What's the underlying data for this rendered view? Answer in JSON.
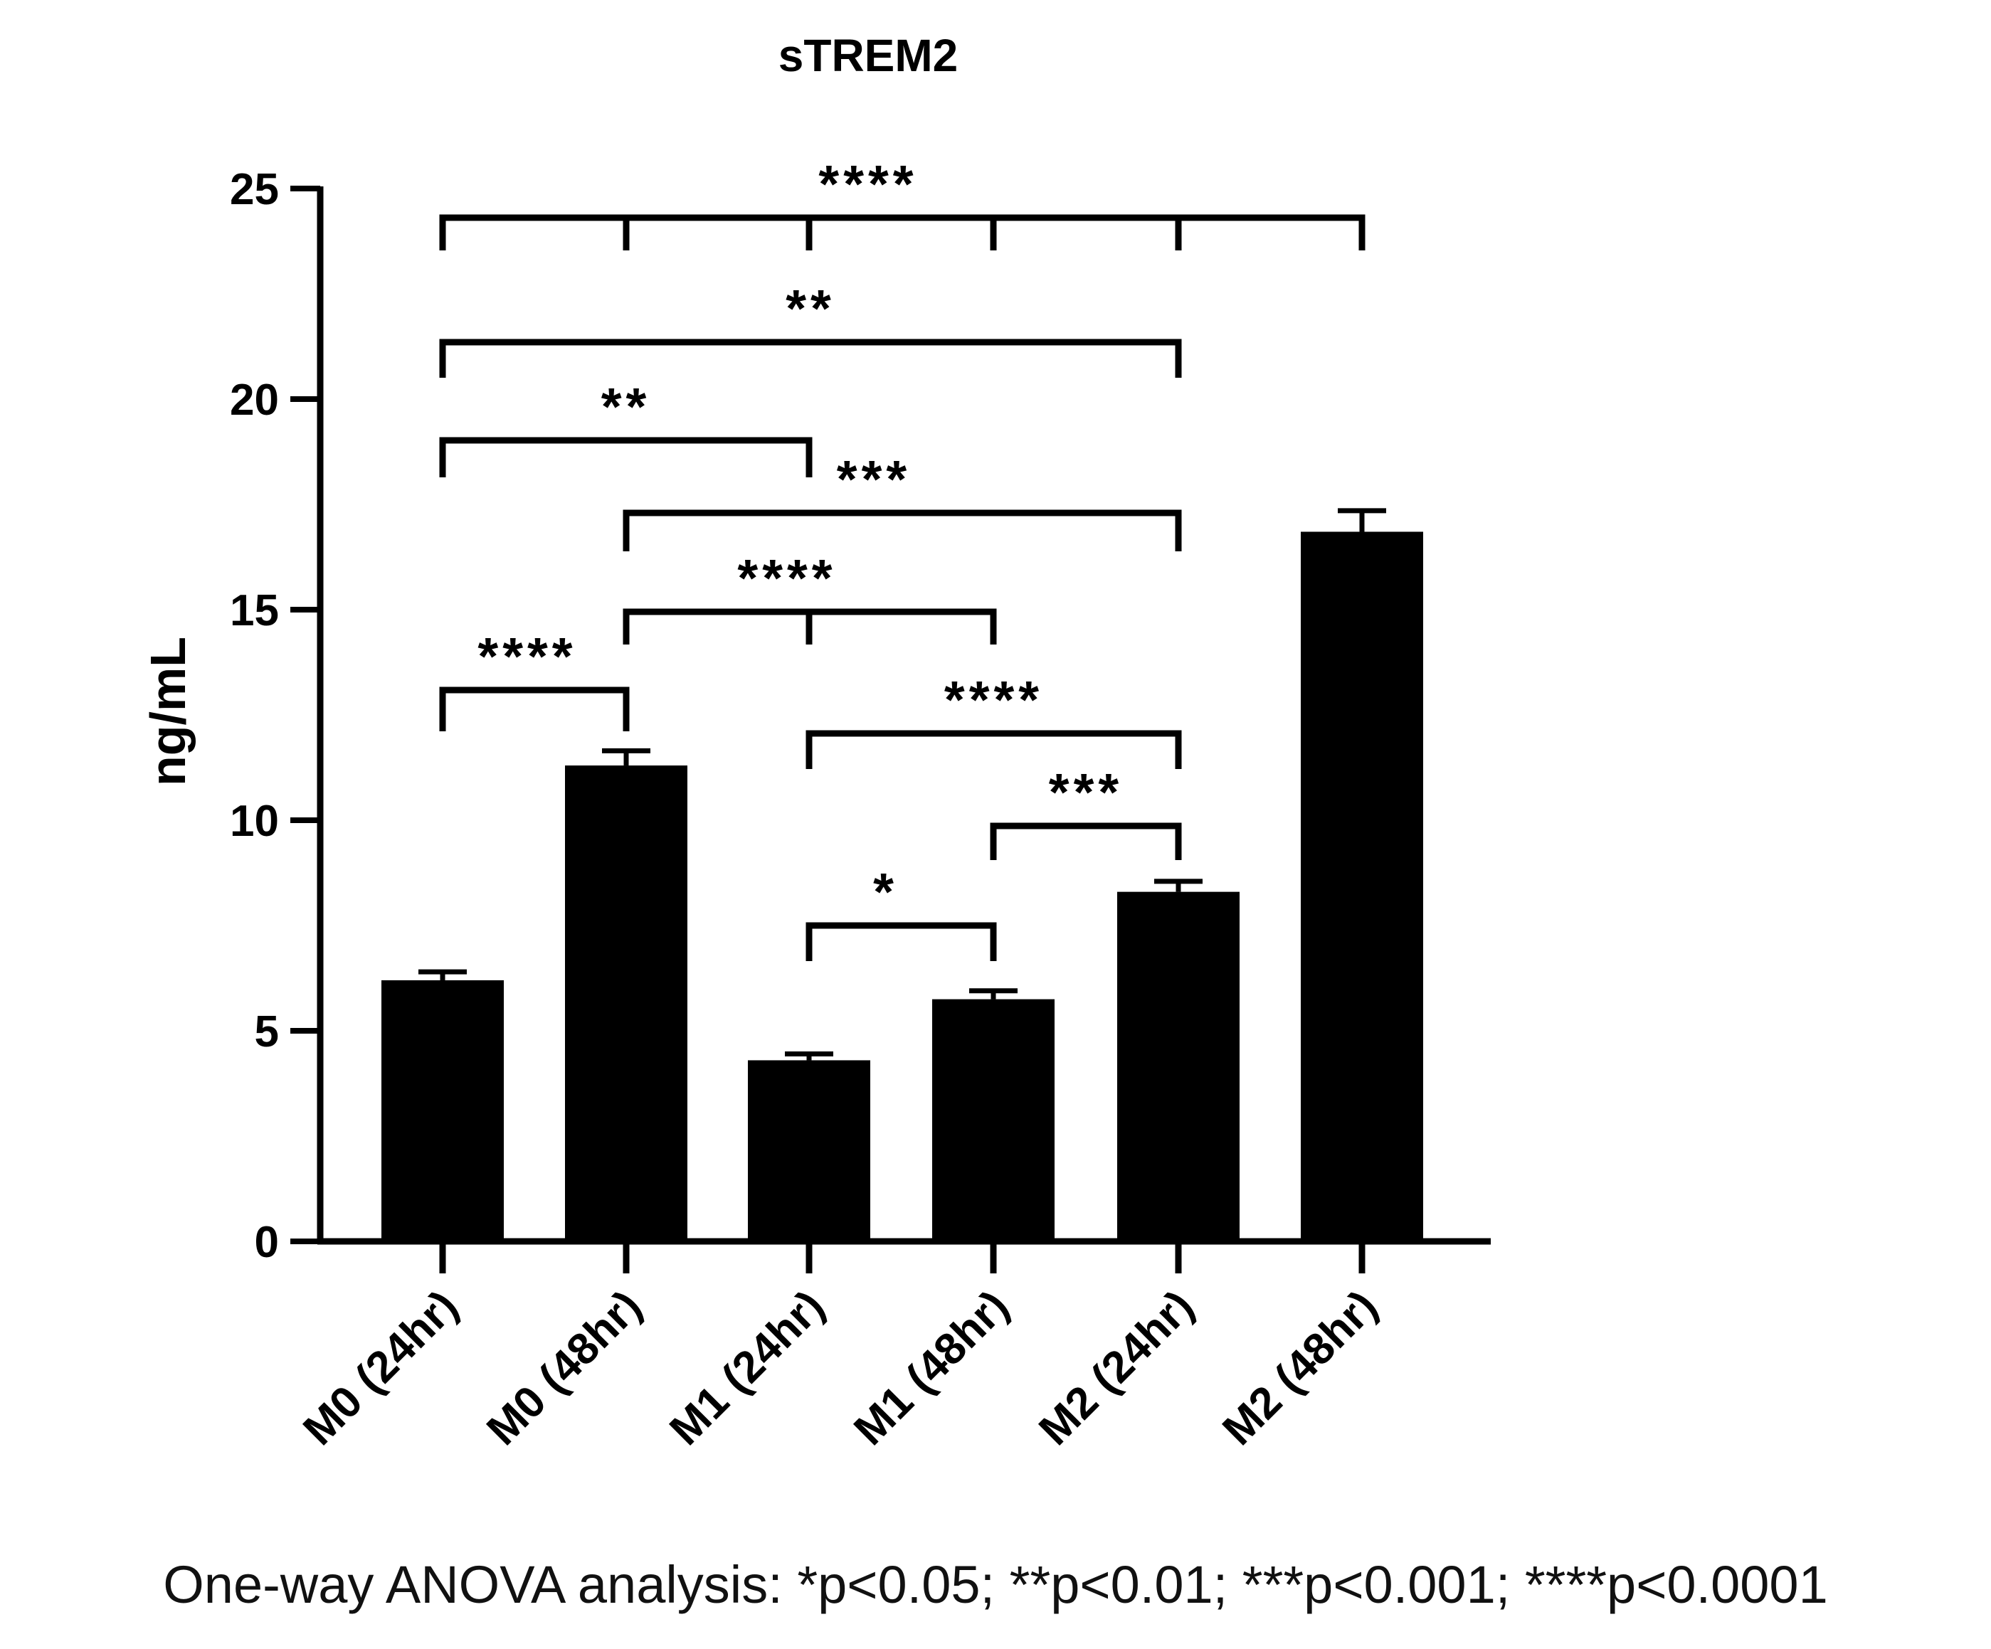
{
  "chart_data": {
    "type": "bar",
    "title": "sTREM2",
    "xlabel": "",
    "ylabel": "ng/mL",
    "ylim": [
      0,
      25
    ],
    "yticks": [
      "0",
      "5",
      "10",
      "15",
      "20",
      "25"
    ],
    "categories": [
      "M0 (24hr)",
      "M0 (48hr)",
      "M1 (24hr)",
      "M1 (48hr)",
      "M2 (24hr)",
      "M2 (48hr)"
    ],
    "values": [
      6.2,
      11.3,
      4.3,
      5.75,
      8.3,
      16.85
    ],
    "errors": [
      0.2,
      0.35,
      0.15,
      0.2,
      0.25,
      0.5
    ],
    "bar_color": "#000000",
    "grid": false,
    "significance": [
      {
        "pair": [
          0,
          1
        ],
        "label": "****",
        "extra_ticks": []
      },
      {
        "pair": [
          1,
          3
        ],
        "label": "****",
        "extra_ticks": [
          2
        ]
      },
      {
        "pair": [
          1,
          4
        ],
        "label": "***",
        "extra_ticks": []
      },
      {
        "pair": [
          0,
          2
        ],
        "label": "**",
        "extra_ticks": []
      },
      {
        "pair": [
          0,
          4
        ],
        "label": "**",
        "extra_ticks": []
      },
      {
        "pair": [
          0,
          5
        ],
        "label": "****",
        "extra_ticks": [
          1,
          2,
          3,
          4
        ]
      },
      {
        "pair": [
          2,
          4
        ],
        "label": "****",
        "extra_ticks": []
      },
      {
        "pair": [
          3,
          4
        ],
        "label": "***",
        "extra_ticks": []
      },
      {
        "pair": [
          2,
          3
        ],
        "label": "*",
        "extra_ticks": []
      }
    ],
    "footnote": "One-way ANOVA analysis: *p<0.05; **p<0.01; ***p<0.001; ****p<0.0001"
  }
}
